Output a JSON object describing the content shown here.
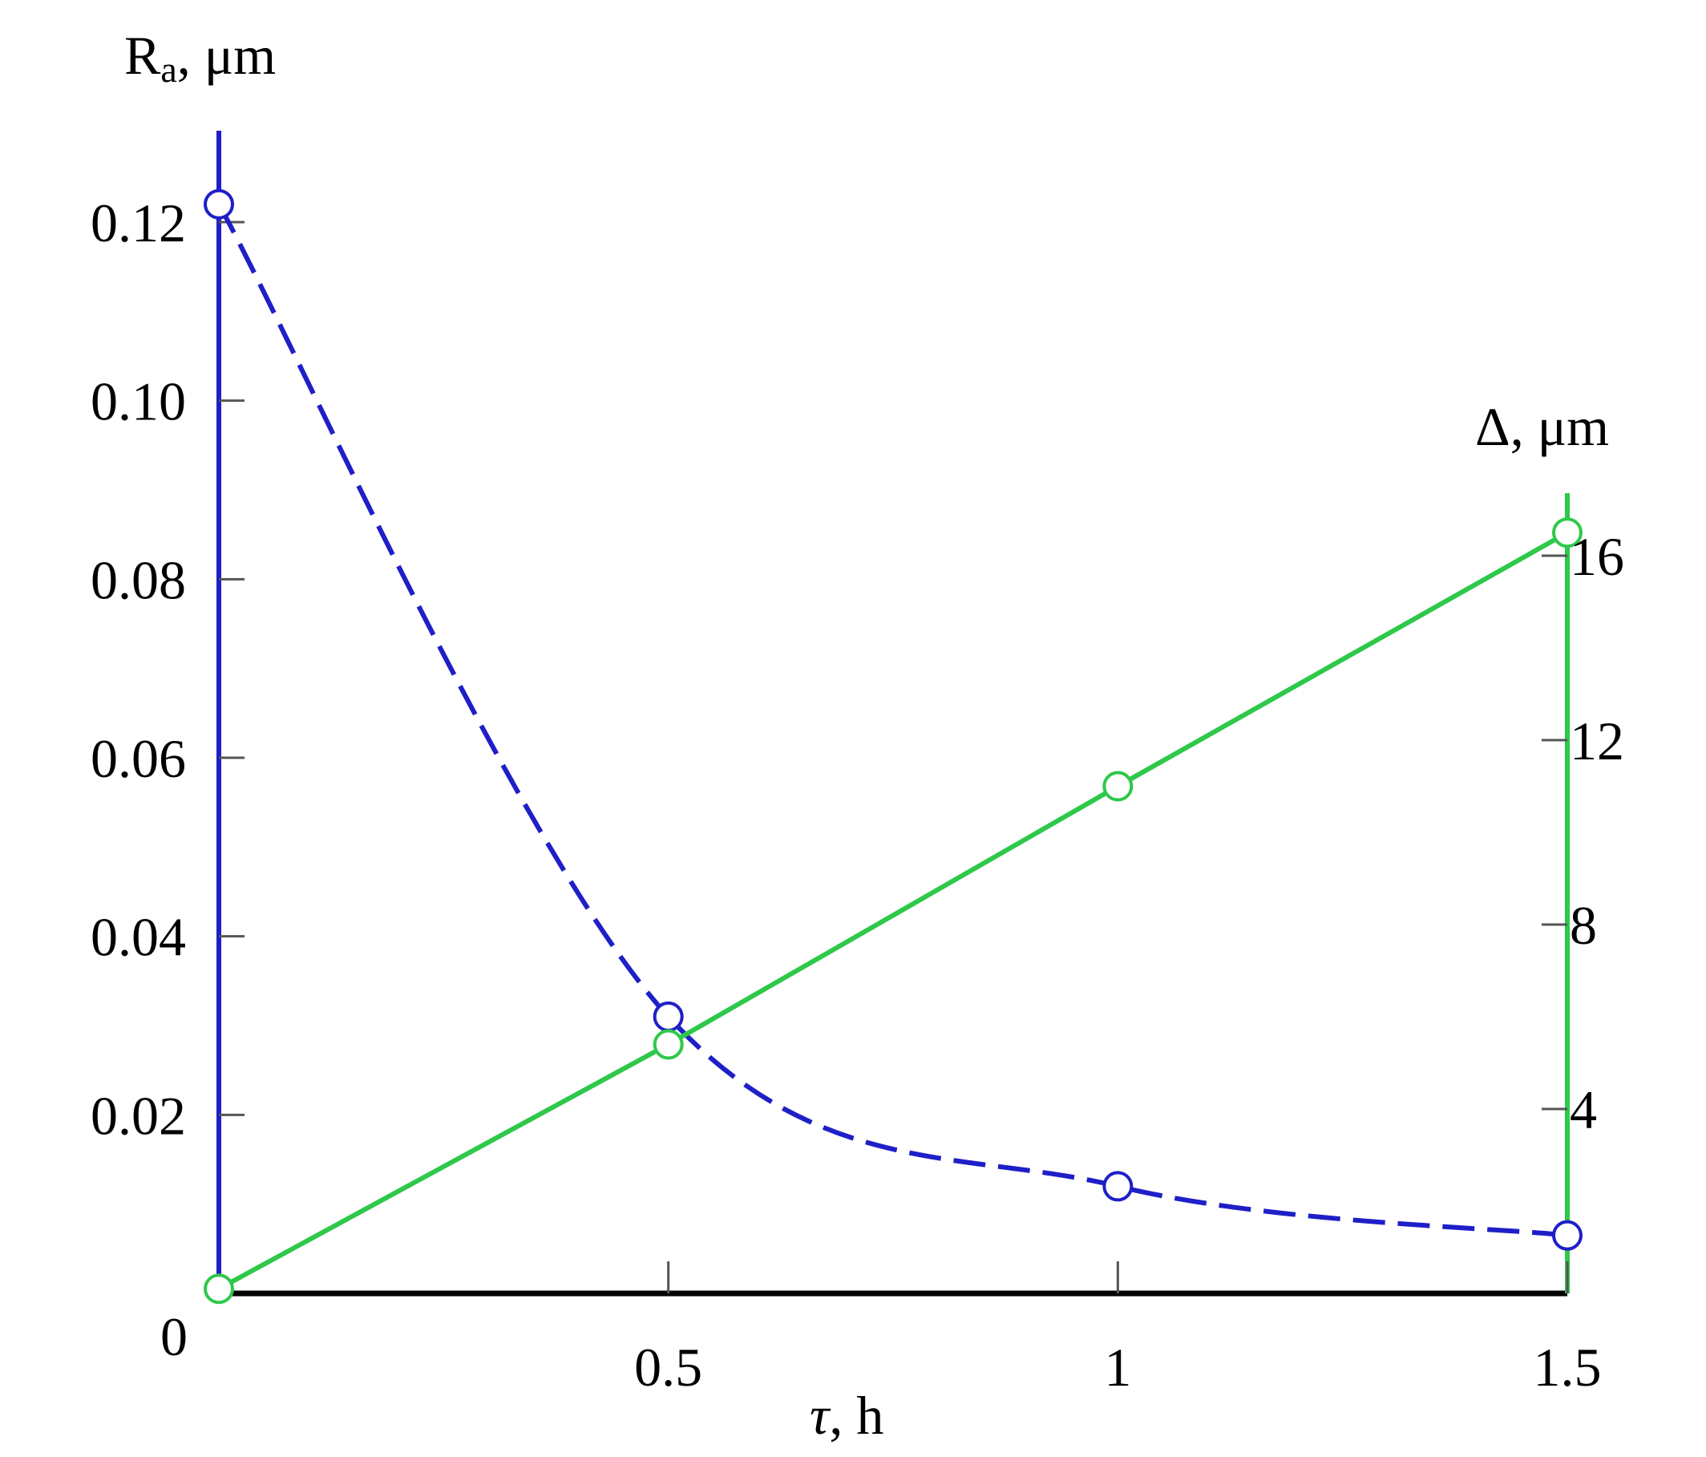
{
  "chart_data": {
    "type": "line",
    "x": [
      0,
      0.5,
      1,
      1.5
    ],
    "xlim": [
      0,
      1.5
    ],
    "x_ticks": [
      "0",
      "0.5",
      "1",
      "1.5"
    ],
    "xlabel": {
      "symbol": "τ",
      "unit": ", h"
    },
    "y_left": {
      "label_main": "R",
      "label_sub": "a",
      "label_unit": ", μm",
      "ylim": [
        0,
        0.13
      ],
      "ticks": [
        0.02,
        0.04,
        0.06,
        0.08,
        0.1,
        0.12
      ],
      "tick_labels": [
        "0.02",
        "0.04",
        "0.06",
        "0.08",
        "0.10",
        "0.12"
      ],
      "color": "#1f1fc8"
    },
    "y_right": {
      "label": "Δ, μm",
      "ylim": [
        0,
        17.6
      ],
      "ticks": [
        4,
        8,
        12,
        16
      ],
      "tick_labels": [
        "4",
        "8",
        "12",
        "16"
      ],
      "color": "#2ec84a"
    },
    "origin_label": "0",
    "grid": false,
    "series": [
      {
        "axis": "left",
        "values": [
          0.122,
          0.031,
          0.012,
          0.0065
        ],
        "line_style": "dashed",
        "marker": "open-circle",
        "color": "#1f1fc8"
      },
      {
        "axis": "right",
        "values": [
          0.1,
          5.4,
          11.0,
          16.5
        ],
        "line_style": "solid",
        "marker": "open-circle",
        "color": "#2ec84a"
      }
    ]
  }
}
